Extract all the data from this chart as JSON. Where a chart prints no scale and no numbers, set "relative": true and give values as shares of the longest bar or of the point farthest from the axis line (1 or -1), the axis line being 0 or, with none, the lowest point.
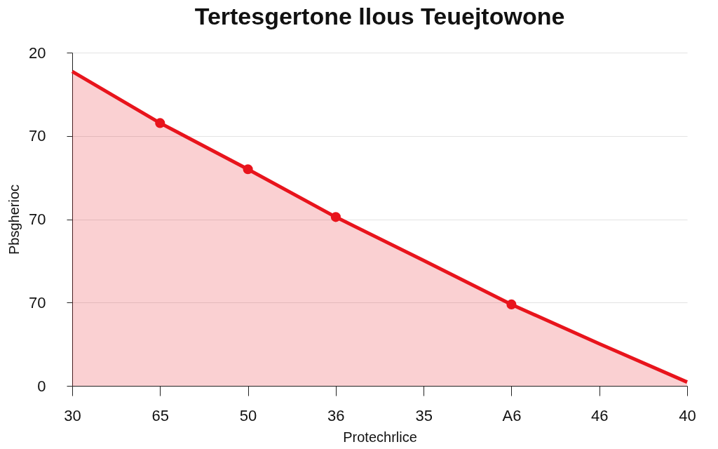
{
  "chart_data": {
    "type": "area",
    "title": "Tertesgertone llous  Teuejtowone",
    "xlabel": "Protechrlice",
    "ylabel": "Pbsgherioc",
    "categories": [
      "30",
      "65",
      "50",
      "36",
      "35",
      "A6",
      "46",
      "40"
    ],
    "relative": true,
    "series": [
      {
        "color": "#e8141c",
        "values": [
          1,
          0.836,
          0.689,
          0.537,
          0.399,
          0.259,
          0.134,
          0.012
        ]
      },
      {
        "type": "scatter",
        "marker": "circle",
        "color": "#e8141c",
        "values": [
          null,
          0.836,
          0.689,
          0.537,
          null,
          0.259,
          null,
          null
        ]
      }
    ],
    "annotations": [
      "20",
      "70",
      "70",
      "70",
      "0"
    ],
    "grid": "y",
    "line_style": "solid"
  }
}
